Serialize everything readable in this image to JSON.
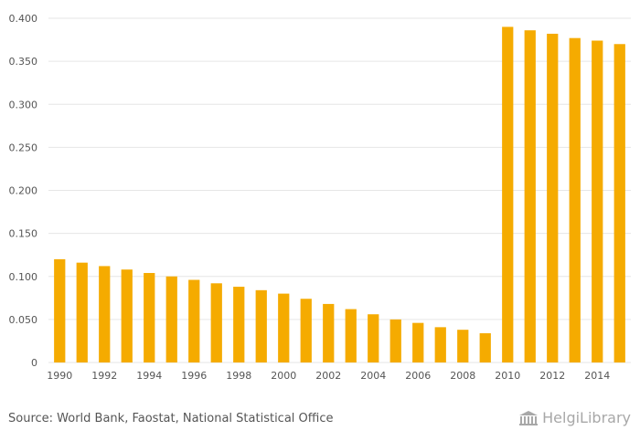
{
  "chart_data": {
    "type": "bar",
    "categories": [
      "1990",
      "1991",
      "1992",
      "1993",
      "1994",
      "1995",
      "1996",
      "1997",
      "1998",
      "1999",
      "2000",
      "2001",
      "2002",
      "2003",
      "2004",
      "2005",
      "2006",
      "2007",
      "2008",
      "2009",
      "2010",
      "2011",
      "2012",
      "2013",
      "2014",
      "2015"
    ],
    "x_tick_labels": [
      "1990",
      "1992",
      "1994",
      "1996",
      "1998",
      "2000",
      "2002",
      "2004",
      "2006",
      "2008",
      "2010",
      "2012",
      "2014"
    ],
    "values": [
      0.12,
      0.116,
      0.112,
      0.108,
      0.104,
      0.1,
      0.096,
      0.092,
      0.088,
      0.084,
      0.08,
      0.074,
      0.068,
      0.062,
      0.056,
      0.05,
      0.046,
      0.041,
      0.038,
      0.034,
      0.39,
      0.386,
      0.382,
      0.377,
      0.374,
      0.37
    ],
    "ylim": [
      0,
      0.4
    ],
    "y_ticks": [
      "0",
      "0.050",
      "0.100",
      "0.150",
      "0.200",
      "0.250",
      "0.300",
      "0.350",
      "0.400"
    ],
    "grid": true,
    "legend": "none",
    "bar_color": "#f5ab00",
    "grid_color": "#e6e6e6",
    "axis_text_color": "#555555"
  },
  "footer": {
    "source": "Source: World Bank, Faostat, National Statistical Office",
    "brand": "HelgiLibrary"
  }
}
